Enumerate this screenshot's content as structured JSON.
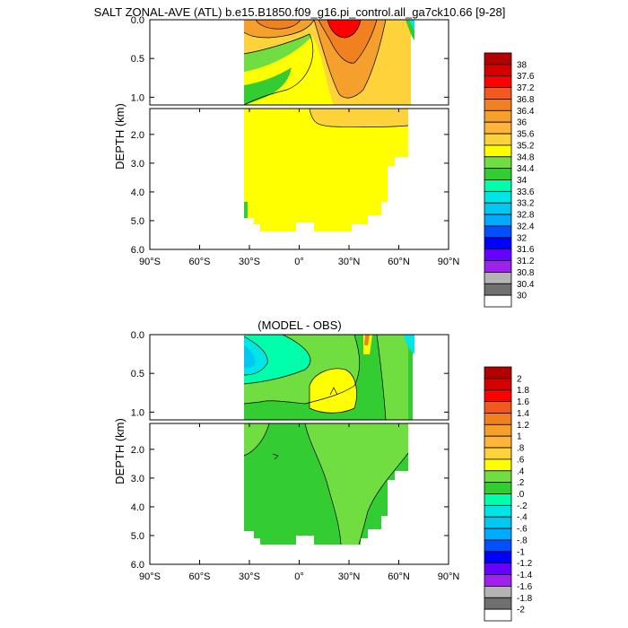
{
  "chart_data": [
    {
      "type": "heatmap",
      "title": "SALT ZONAL-AVE (ATL) b.e15.B1850.f09_g16.pi_control.all_ga7ck10.66 [9-28]",
      "ylabel": "DEPTH (km)",
      "xticks": [
        "90°S",
        "60°S",
        "30°S",
        "0°",
        "30°N",
        "60°N",
        "90°N"
      ],
      "x_values": [
        -90,
        -60,
        -30,
        0,
        30,
        60,
        90
      ],
      "upper_panel_yticks": [
        "0.0",
        "0.5",
        "1.0"
      ],
      "upper_panel_y_values": [
        0.0,
        0.5,
        1.0
      ],
      "lower_panel_yticks": [
        "2.0",
        "3.0",
        "4.0",
        "5.0",
        "6.0"
      ],
      "lower_panel_y_values": [
        2.0,
        3.0,
        4.0,
        5.0,
        6.0
      ],
      "ylim_upper": [
        0.0,
        1.1
      ],
      "ylim_lower": [
        1.1,
        6.0
      ],
      "xlim": [
        -90,
        90
      ],
      "colorbar_labels": [
        "38",
        "37.6",
        "37.2",
        "36.8",
        "36.4",
        "36",
        "35.6",
        "35.2",
        "34.8",
        "34.4",
        "34",
        "33.6",
        "33.2",
        "32.8",
        "32.4",
        "32",
        "31.6",
        "31.2",
        "30.8",
        "30.4",
        "30"
      ],
      "colorbar_colors": [
        "#b30000",
        "#d40000",
        "#ff0000",
        "#f05a20",
        "#f08020",
        "#f5a02d",
        "#ffb43c",
        "#fdd23a",
        "#ffff00",
        "#70dd40",
        "#33cc33",
        "#00ffaa",
        "#00e6e6",
        "#00c8f0",
        "#00aaff",
        "#0050ff",
        "#0000ff",
        "#6600ff",
        "#a020f0",
        "#b4b4b4",
        "#707070",
        "#ffffff"
      ]
    },
    {
      "type": "heatmap",
      "title": "(MODEL - OBS)",
      "ylabel": "DEPTH (km)",
      "xticks": [
        "90°S",
        "60°S",
        "30°S",
        "0°",
        "30°N",
        "60°N",
        "90°N"
      ],
      "x_values": [
        -90,
        -60,
        -30,
        0,
        30,
        60,
        90
      ],
      "upper_panel_yticks": [
        "0.0",
        "0.5",
        "1.0"
      ],
      "upper_panel_y_values": [
        0.0,
        0.5,
        1.0
      ],
      "lower_panel_yticks": [
        "2.0",
        "3.0",
        "4.0",
        "5.0",
        "6.0"
      ],
      "lower_panel_y_values": [
        2.0,
        3.0,
        4.0,
        5.0,
        6.0
      ],
      "ylim_upper": [
        0.0,
        1.1
      ],
      "ylim_lower": [
        1.1,
        6.0
      ],
      "xlim": [
        -90,
        90
      ],
      "colorbar_labels": [
        "2",
        "1.8",
        "1.6",
        "1.4",
        "1.2",
        "1",
        ".8",
        ".6",
        ".4",
        ".2",
        ".0",
        "-.2",
        "-.4",
        "-.6",
        "-.8",
        "-1",
        "-1.2",
        "-1.4",
        "-1.6",
        "-1.8",
        "-2"
      ],
      "colorbar_colors": [
        "#b30000",
        "#d40000",
        "#ff0000",
        "#f05a20",
        "#f08020",
        "#f5a02d",
        "#ffb43c",
        "#fdd23a",
        "#ffff00",
        "#70dd40",
        "#33cc33",
        "#00ffaa",
        "#00e6e6",
        "#00c8f0",
        "#00aaff",
        "#0050ff",
        "#0000ff",
        "#6600ff",
        "#a020f0",
        "#b4b4b4",
        "#707070",
        "#ffffff"
      ]
    }
  ]
}
